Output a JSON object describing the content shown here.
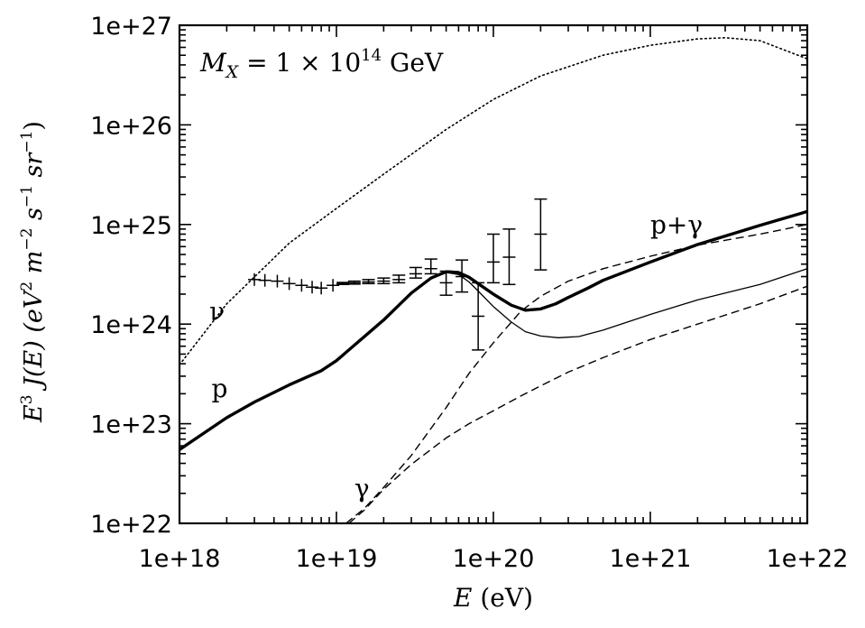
{
  "chart_data": {
    "type": "line",
    "title": "",
    "annotation_label": "M_X = 1 × 10^14 GeV",
    "annotation": {
      "lhs": "M",
      "lhs_sub": "X",
      "eq": " = 1 × 10",
      "exp": "14",
      "unit": " GeV"
    },
    "xlabel": "E (eV)",
    "xlabel_parts": {
      "var": "E",
      "unit": " (eV)"
    },
    "ylabel": "E^3 J(E) (eV^2 m^-2 s^-1 sr^-1)",
    "ylabel_parts": {
      "e": "E",
      "e_exp": "3",
      "j": " J(E) (eV",
      "ev_exp": "2",
      "m": " m",
      "m_exp": "−2",
      "s": " s",
      "s_exp": "−1",
      "sr": " sr",
      "sr_exp": "−1",
      "close": ")"
    },
    "xscale": "log",
    "yscale": "log",
    "xlim": [
      1e+18,
      1e+22
    ],
    "ylim": [
      1e+22,
      1e+27
    ],
    "x_ticks": [
      {
        "value": 1e+18,
        "label": "1e+18"
      },
      {
        "value": 1e+19,
        "label": "1e+19"
      },
      {
        "value": 1e+20,
        "label": "1e+20"
      },
      {
        "value": 1e+21,
        "label": "1e+21"
      },
      {
        "value": 1e+22,
        "label": "1e+22"
      }
    ],
    "y_ticks": [
      {
        "value": 1e+22,
        "label": "1e+22"
      },
      {
        "value": 1e+23,
        "label": "1e+23"
      },
      {
        "value": 1e+24,
        "label": "1e+24"
      },
      {
        "value": 1e+25,
        "label": "1e+25"
      },
      {
        "value": 1e+26,
        "label": "1e+26"
      },
      {
        "value": 1e+27,
        "label": "1e+27"
      }
    ],
    "series": [
      {
        "name": "nu",
        "label": "ν",
        "style": "dotted",
        "width": 1.6,
        "x": [
          1e+18,
          2e+18,
          5e+18,
          1e+19,
          2e+19,
          5e+19,
          1e+20,
          2e+20,
          5e+20,
          1e+21,
          2e+21,
          3e+21,
          5e+21,
          1e+22
        ],
        "y": [
          3.9e+23,
          1.6e+24,
          6.5e+24,
          1.45e+25,
          3.2e+25,
          9e+25,
          1.8e+26,
          3.1e+26,
          5e+26,
          6.3e+26,
          7.3e+26,
          7.5e+26,
          7e+26,
          4.6e+26
        ]
      },
      {
        "name": "p",
        "label": "p",
        "style": "solid",
        "width": 1.3,
        "x": [
          1e+18,
          2e+18,
          3e+18,
          5e+18,
          8e+18,
          1e+19,
          2e+19,
          3e+19,
          4e+19,
          5e+19,
          6e+19,
          7e+19,
          8e+19,
          1e+20,
          1.3e+20,
          1.6e+20,
          2e+20,
          2.6e+20,
          3.5e+20,
          5e+20,
          1e+21,
          2e+21,
          5e+21,
          1e+22
        ],
        "y": [
          5.5e+22,
          1.15e+23,
          1.65e+23,
          2.45e+23,
          3.4e+23,
          4.3e+23,
          1.1e+24,
          2.05e+24,
          2.9e+24,
          3.3e+24,
          3.15e+24,
          2.65e+24,
          2.15e+24,
          1.5e+24,
          1.05e+24,
          8.4e+23,
          7.6e+23,
          7.3e+23,
          7.5e+23,
          8.7e+23,
          1.25e+24,
          1.75e+24,
          2.5e+24,
          3.6e+24
        ]
      },
      {
        "name": "gamma_upper",
        "label": "γ",
        "style": "dashed",
        "width": 1.4,
        "x": [
          1.15e+19,
          1.5e+19,
          2e+19,
          3e+19,
          5e+19,
          7e+19,
          1e+20,
          1.5e+20,
          2e+20,
          3e+20,
          5e+20,
          1e+21,
          2e+21,
          5e+21,
          1e+22
        ],
        "y": [
          1e+22,
          1.4e+22,
          2.3e+22,
          4.8e+22,
          1.45e+23,
          3.2e+23,
          6.5e+23,
          1.35e+24,
          1.9e+24,
          2.7e+24,
          3.6e+24,
          4.8e+24,
          6.2e+24,
          8e+24,
          1e+25
        ]
      },
      {
        "name": "gamma_lower",
        "label": "γ",
        "style": "dashed",
        "width": 1.4,
        "x": [
          1.2e+19,
          1.5e+19,
          2e+19,
          3e+19,
          5e+19,
          7e+19,
          1e+20,
          1.5e+20,
          2e+20,
          3e+20,
          5e+20,
          1e+21,
          2e+21,
          5e+21,
          1e+22
        ],
        "y": [
          1e+22,
          1.35e+22,
          2.2e+22,
          3.9e+22,
          7.2e+22,
          1e+23,
          1.35e+23,
          1.9e+23,
          2.4e+23,
          3.3e+23,
          4.6e+23,
          7e+23,
          1e+24,
          1.6e+24,
          2.4e+24
        ]
      },
      {
        "name": "p_plus_gamma",
        "label": "p+γ",
        "style": "solid",
        "width": 3.4,
        "x": [
          1e+18,
          2e+18,
          3e+18,
          5e+18,
          8e+18,
          1e+19,
          2e+19,
          3e+19,
          4e+19,
          5e+19,
          6e+19,
          7e+19,
          8e+19,
          1e+20,
          1.3e+20,
          1.6e+20,
          2e+20,
          2.5e+20,
          3e+20,
          4e+20,
          5e+20,
          1e+21,
          2e+21,
          5e+21,
          1e+22
        ],
        "y": [
          5.5e+22,
          1.15e+23,
          1.65e+23,
          2.45e+23,
          3.4e+23,
          4.3e+23,
          1.1e+24,
          2.05e+24,
          2.9e+24,
          3.35e+24,
          3.3e+24,
          2.95e+24,
          2.55e+24,
          2e+24,
          1.55e+24,
          1.38e+24,
          1.42e+24,
          1.6e+24,
          1.85e+24,
          2.3e+24,
          2.75e+24,
          4.2e+24,
          6.3e+24,
          9.8e+24,
          1.35e+25
        ]
      }
    ],
    "data_points": [
      {
        "x": 3e+18,
        "y": 2.8e+24,
        "ylo": 2.8e+24,
        "yhi": 2.8e+24
      },
      {
        "x": 3.5e+18,
        "y": 2.75e+24,
        "ylo": 2.75e+24,
        "yhi": 2.75e+24
      },
      {
        "x": 4.2e+18,
        "y": 2.7e+24,
        "ylo": 2.7e+24,
        "yhi": 2.7e+24
      },
      {
        "x": 5e+18,
        "y": 2.55e+24,
        "ylo": 2.55e+24,
        "yhi": 2.55e+24
      },
      {
        "x": 6e+18,
        "y": 2.45e+24,
        "ylo": 2.45e+24,
        "yhi": 2.45e+24
      },
      {
        "x": 7e+18,
        "y": 2.35e+24,
        "ylo": 2.35e+24,
        "yhi": 2.35e+24
      },
      {
        "x": 8e+18,
        "y": 2.3e+24,
        "ylo": 2.3e+24,
        "yhi": 2.3e+24
      },
      {
        "x": 9.5e+18,
        "y": 2.45e+24,
        "ylo": 2.45e+24,
        "yhi": 2.45e+24
      },
      {
        "x": 1.1e+19,
        "y": 2.55e+24,
        "ylo": 2.5e+24,
        "yhi": 2.62e+24
      },
      {
        "x": 1.3e+19,
        "y": 2.6e+24,
        "ylo": 2.52e+24,
        "yhi": 2.7e+24
      },
      {
        "x": 1.6e+19,
        "y": 2.65e+24,
        "ylo": 2.55e+24,
        "yhi": 2.8e+24
      },
      {
        "x": 2e+19,
        "y": 2.7e+24,
        "ylo": 2.55e+24,
        "yhi": 2.9e+24
      },
      {
        "x": 2.5e+19,
        "y": 2.8e+24,
        "ylo": 2.6e+24,
        "yhi": 3.1e+24
      },
      {
        "x": 3.2e+19,
        "y": 3.2e+24,
        "ylo": 2.9e+24,
        "yhi": 3.7e+24
      },
      {
        "x": 4e+19,
        "y": 3.6e+24,
        "ylo": 3.2e+24,
        "yhi": 4.5e+24
      },
      {
        "x": 5e+19,
        "y": 2.6e+24,
        "ylo": 1.95e+24,
        "yhi": 3.4e+24
      },
      {
        "x": 6.3e+19,
        "y": 3e+24,
        "ylo": 2.1e+24,
        "yhi": 4.4e+24
      },
      {
        "x": 8e+19,
        "y": 1.2e+24,
        "ylo": 5.5e+23,
        "yhi": 2.6e+24
      },
      {
        "x": 1e+20,
        "y": 4.2e+24,
        "ylo": 2.6e+24,
        "yhi": 8e+24
      },
      {
        "x": 1.26e+20,
        "y": 4.7e+24,
        "ylo": 2.5e+24,
        "yhi": 9e+24
      },
      {
        "x": 2e+20,
        "y": 8e+24,
        "ylo": 3.5e+24,
        "yhi": 1.8e+25
      }
    ],
    "curve_labels": [
      {
        "text": "ν",
        "x": 1.55e+18,
        "y": 1.1e+24
      },
      {
        "text": "p",
        "x": 1.6e+18,
        "y": 1.85e+23
      },
      {
        "text": "p+γ",
        "x": 1e+21,
        "y": 8.2e+24
      },
      {
        "text": "γ",
        "x": 1.3e+19,
        "y": 1.85e+22
      }
    ]
  }
}
